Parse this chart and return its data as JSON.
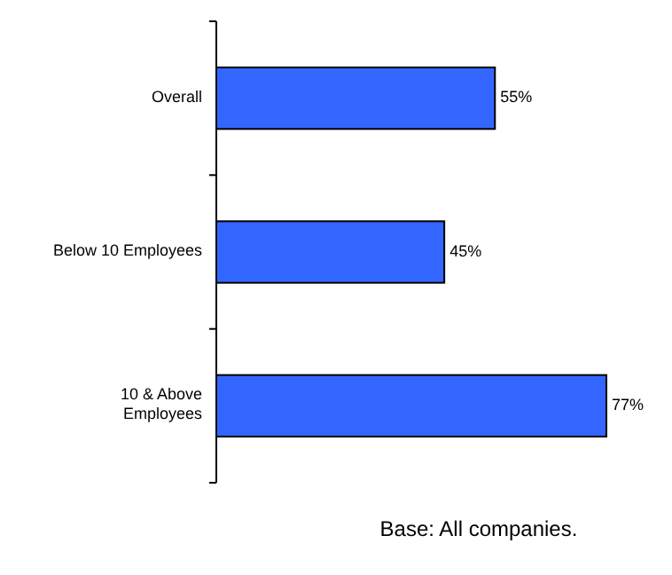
{
  "chart_data": {
    "type": "bar",
    "orientation": "horizontal",
    "categories": [
      "Overall",
      "Below 10 Employees",
      "10 & Above Employees"
    ],
    "values": [
      55,
      45,
      77
    ],
    "value_labels": [
      "55%",
      "45%",
      "77%"
    ],
    "color": "#3366ff",
    "annotations": [
      "Base: All companies."
    ]
  }
}
